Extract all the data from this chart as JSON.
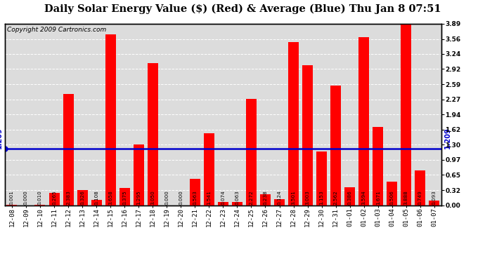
{
  "title": "Daily Solar Energy Value ($) (Red) & Average (Blue) Thu Jan 8 07:51",
  "copyright": "Copyright 2009 Cartronics.com",
  "average": 1.209,
  "categories": [
    "12-08",
    "12-09",
    "12-10",
    "12-11",
    "12-12",
    "12-13",
    "12-14",
    "12-15",
    "12-16",
    "12-17",
    "12-18",
    "12-19",
    "12-20",
    "12-21",
    "12-22",
    "12-23",
    "12-24",
    "12-25",
    "12-26",
    "12-27",
    "12-28",
    "12-29",
    "12-30",
    "12-31",
    "01-01",
    "01-02",
    "01-03",
    "01-04",
    "01-05",
    "01-06",
    "01-07"
  ],
  "values": [
    0.001,
    0.0,
    0.01,
    0.265,
    2.383,
    0.326,
    0.108,
    3.658,
    0.375,
    1.295,
    3.05,
    0.0,
    0.0,
    0.563,
    1.541,
    0.074,
    0.063,
    2.272,
    0.238,
    0.124,
    3.501,
    3.003,
    1.153,
    2.562,
    0.386,
    3.594,
    1.671,
    0.506,
    3.888,
    0.749,
    0.093
  ],
  "bar_color": "#FF0000",
  "line_color": "#0000CD",
  "bg_color": "#FFFFFF",
  "plot_bg_color": "#DCDCDC",
  "grid_color": "#FFFFFF",
  "ylim": [
    0.0,
    3.89
  ],
  "yticks": [
    0.0,
    0.32,
    0.65,
    0.97,
    1.3,
    1.62,
    1.94,
    2.27,
    2.59,
    2.92,
    3.24,
    3.56,
    3.89
  ],
  "title_fontsize": 10.5,
  "tick_fontsize": 6.5,
  "label_fontsize": 5.2,
  "copyright_fontsize": 6.5
}
